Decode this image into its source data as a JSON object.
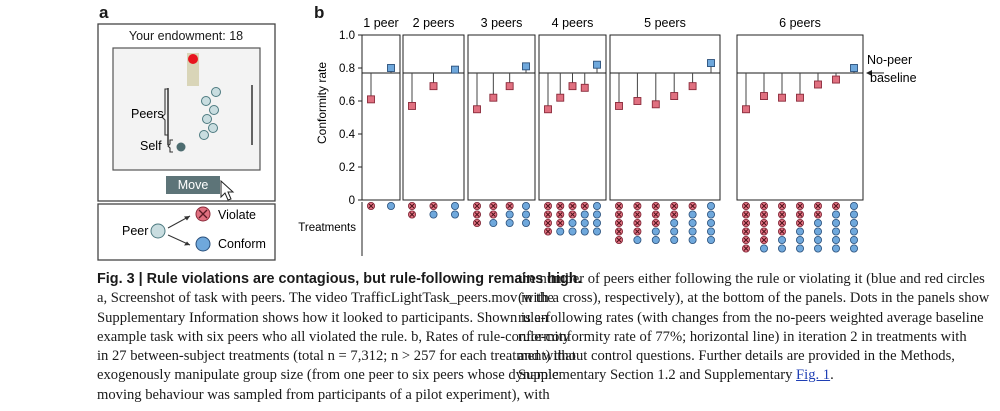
{
  "panel_a": {
    "letter": "a",
    "endowment": "Your endowment: 18",
    "peers_label": "Peers",
    "self_label": "Self",
    "move_button": "Move",
    "legend": {
      "peer": "Peer",
      "violate": "Violate",
      "conform": "Conform"
    }
  },
  "panel_b": {
    "letter": "b",
    "treatments_label": "Treatments"
  },
  "colors": {
    "violate": "#e07080",
    "conform": "#6fa8dc",
    "peer_gray": "#c9dde0",
    "baseline": "#1a1a1a"
  },
  "chart_data": {
    "type": "scatter",
    "ylabel": "Conformity rate",
    "ylim": [
      0.0,
      1.0
    ],
    "yticks": [
      "0",
      "0.2",
      "0.4",
      "0.6",
      "0.8",
      "1.0"
    ],
    "baseline": 0.77,
    "baseline_label": [
      "No-peer",
      "baseline"
    ],
    "groups": [
      {
        "title": "1 peer",
        "violators": [
          1
        ],
        "values": [
          0.61,
          0.8
        ]
      },
      {
        "title": "2 peers",
        "violators": [
          2,
          1
        ],
        "values": [
          0.57,
          0.69,
          0.79
        ]
      },
      {
        "title": "3 peers",
        "violators": [
          3,
          2,
          1
        ],
        "values": [
          0.55,
          0.62,
          0.69,
          0.81
        ]
      },
      {
        "title": "4 peers",
        "violators": [
          4,
          3,
          2,
          1
        ],
        "values": [
          0.55,
          0.62,
          0.69,
          0.68,
          0.82
        ]
      },
      {
        "title": "5 peers",
        "violators": [
          5,
          4,
          3,
          2,
          1
        ],
        "values": [
          0.57,
          0.6,
          0.58,
          0.63,
          0.69,
          0.83
        ]
      },
      {
        "title": "6 peers",
        "violators": [
          6,
          5,
          4,
          3,
          2,
          1
        ],
        "values": [
          0.55,
          0.63,
          0.62,
          0.62,
          0.7,
          0.73,
          0.8
        ]
      }
    ]
  },
  "caption_left": {
    "title": "Fig. 3 | Rule violations are contagious, but rule-following remains high.",
    "lines": [
      "a, Screenshot of task with peers. The video TrafficLightTask_peers.mov in the",
      "Supplementary Information shows how it looked to participants. Shown is an",
      "example task with six peers who all violated the rule. b, Rates of rule-conformity",
      "in 27 between-subject treatments (total n = 7,312; n > 257 for each treatment) that",
      "exogenously manipulate group size (from one peer to six peers whose dynamic",
      "moving behaviour was sampled from participants of a pilot experiment), with"
    ]
  },
  "caption_right": {
    "lines": [
      "the number of peers either following the rule or violating it (blue and red circles",
      "(with a cross), respectively), at the bottom of the panels. Dots in the panels show",
      "rule-following rates (with changes from the no-peers weighted average baseline",
      "rule-conformity rate of 77%; horizontal line) in iteration 2 in treatments with",
      "and without control questions. Further details are provided in the Methods,",
      "Supplementary Section 1.2 and Supplementary"
    ],
    "link": "Fig. 1",
    "end": "."
  }
}
